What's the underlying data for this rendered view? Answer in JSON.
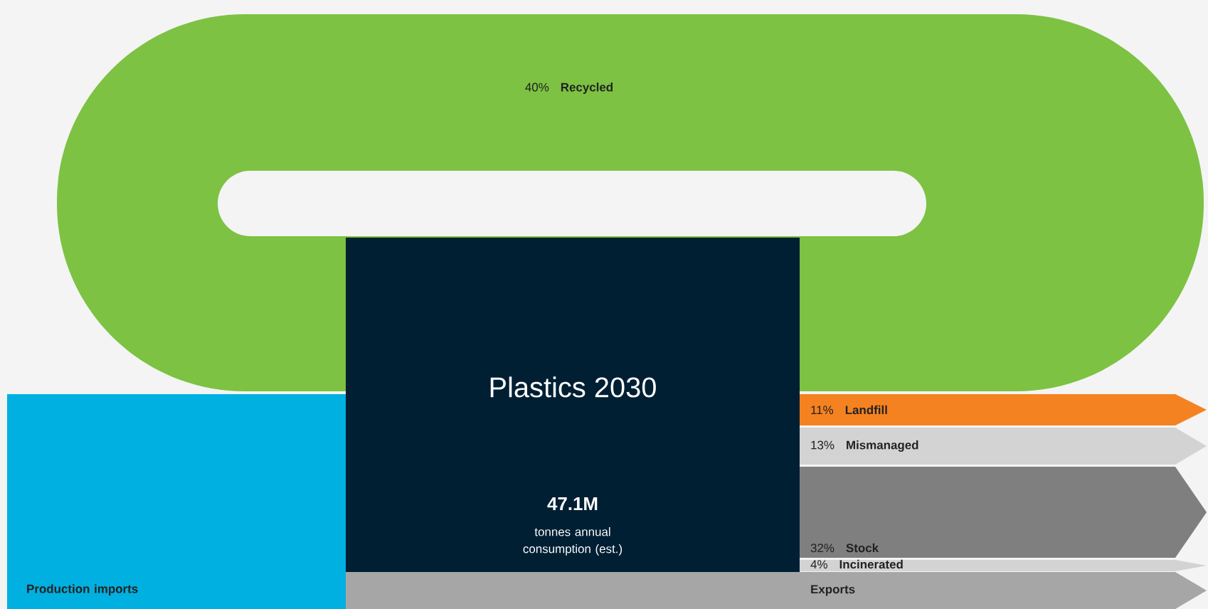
{
  "chart_data": {
    "type": "other",
    "title": "Plastics 2030",
    "categories": [
      "Recycled",
      "Landfill",
      "Mismanaged",
      "Stock",
      "Incinerated",
      "Exports",
      "Production imports"
    ],
    "values": [
      40,
      11,
      13,
      32,
      4,
      null,
      null
    ],
    "value_labels": [
      "40%",
      "11%",
      "13%",
      "32%",
      "4%",
      null,
      null
    ],
    "colors": [
      "#7dc242",
      "#f58220",
      "#d3d3d3",
      "#7f7f7f",
      "#d3d3d3",
      "#a6a6a6",
      "#00b0e0"
    ],
    "annotations": [
      "47.1M",
      "tonnes annual consumption (est.)"
    ]
  }
}
